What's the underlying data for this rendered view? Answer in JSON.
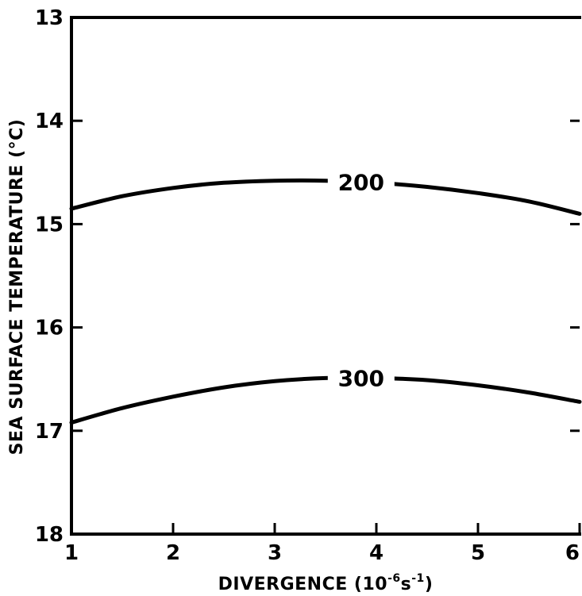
{
  "chart_data": {
    "type": "line",
    "title": "",
    "xlabel": "DIVERGENCE (10",
    "xlabel_exp": "-6",
    "xlabel_unit": "s",
    "xlabel_unit_exp": "-1",
    "xlabel_close": ")",
    "ylabel": "SEA SURFACE TEMPERATURE (°C)",
    "xlim": [
      1,
      6
    ],
    "ylim": [
      13,
      18
    ],
    "y_inverted": true,
    "grid": false,
    "x_ticks": [
      1,
      2,
      3,
      4,
      5,
      6
    ],
    "y_ticks": [
      13,
      14,
      15,
      16,
      17,
      18
    ],
    "series": [
      {
        "name": "200",
        "x": [
          1,
          1.5,
          2,
          2.5,
          3,
          3.5,
          4,
          4.5,
          5,
          5.5,
          6
        ],
        "y": [
          14.85,
          14.73,
          14.65,
          14.6,
          14.58,
          14.58,
          14.6,
          14.64,
          14.7,
          14.78,
          14.9
        ],
        "label_x": 3.85
      },
      {
        "name": "300",
        "x": [
          1,
          1.5,
          2,
          2.5,
          3,
          3.5,
          4,
          4.5,
          5,
          5.5,
          6
        ],
        "y": [
          16.92,
          16.78,
          16.67,
          16.58,
          16.52,
          16.49,
          16.49,
          16.51,
          16.56,
          16.63,
          16.72
        ],
        "label_x": 3.85
      }
    ]
  }
}
